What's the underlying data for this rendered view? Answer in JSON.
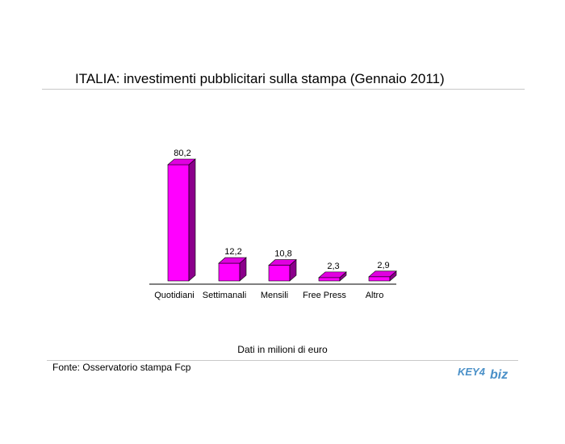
{
  "chart_data": {
    "type": "bar",
    "title": "ITALIA: investimenti pubblicitari sulla stampa (Gennaio 2011)",
    "categories": [
      "Quotidiani",
      "Settimanali",
      "Mensili",
      "Free Press",
      "Altro"
    ],
    "values": [
      80.2,
      12.2,
      10.8,
      2.3,
      2.9
    ],
    "data_labels": [
      "80,2",
      "12,2",
      "10,8",
      "2,3",
      "2,9"
    ],
    "xlabel": "",
    "ylabel": "",
    "ylim": [
      0,
      80.2
    ],
    "grid": false,
    "legend": "none",
    "bar_color": "#ff00ff",
    "bar_side_color": "#8b008b",
    "bar_top_color": "#e000e0"
  },
  "note": "Dati in milioni di euro",
  "source": "Fonte: Osservatorio stampa Fcp",
  "logo": {
    "text_left": "KEY4",
    "text_right": "biz",
    "color": "#4a90c8"
  }
}
